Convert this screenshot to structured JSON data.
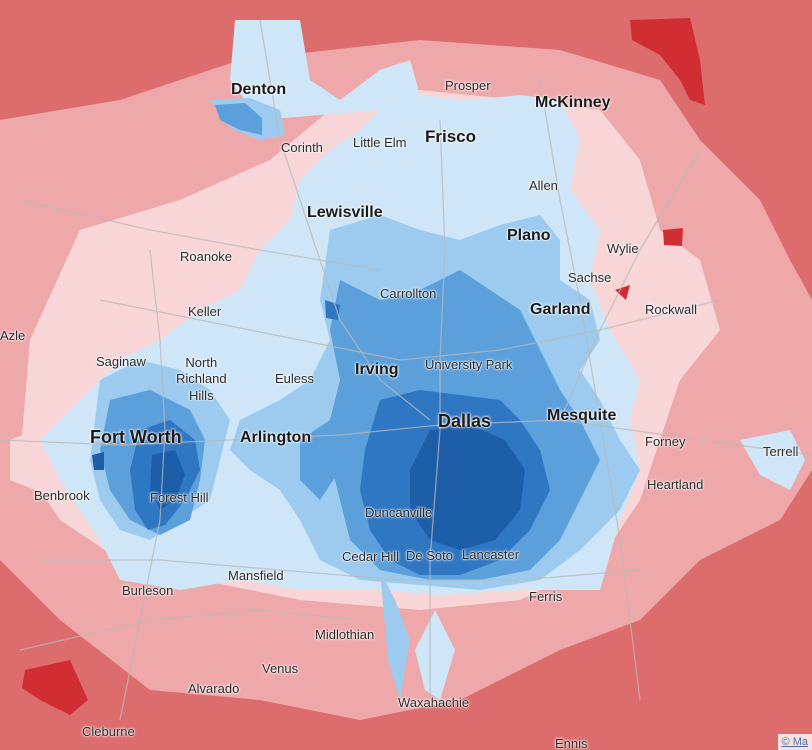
{
  "colors": {
    "deep_red": "#d12e34",
    "red": "#dd6c6c",
    "light_red": "#efa8aa",
    "pale_red": "#f8d6d7",
    "pale_blue": "#cfe6f8",
    "light_blue": "#9ccbef",
    "mid_blue": "#5b9fdb",
    "deep_blue": "#2f76c3",
    "darkest_blue": "#1d5ea8",
    "road": "#b9b9b9"
  },
  "labels": {
    "denton": "Denton",
    "prosper": "Prosper",
    "mckinney": "McKinney",
    "corinth": "Corinth",
    "little_elm": "Little Elm",
    "frisco": "Frisco",
    "allen": "Allen",
    "lewisville": "Lewisville",
    "plano": "Plano",
    "wylie": "Wylie",
    "roanoke": "Roanoke",
    "sachse": "Sachse",
    "carrollton": "Carrollton",
    "keller": "Keller",
    "garland": "Garland",
    "rockwall": "Rockwall",
    "azle": "Azle",
    "saginaw": "Saginaw",
    "north_richland_hills": "North\nRichland\nHills",
    "euless": "Euless",
    "irving": "Irving",
    "university_park": "University Park",
    "mesquite": "Mesquite",
    "fort_worth": "Fort Worth",
    "arlington": "Arlington",
    "dallas": "Dallas",
    "forney": "Forney",
    "terrell": "Terrell",
    "benbrook": "Benbrook",
    "forest_hill": "Forest Hill",
    "heartland": "Heartland",
    "duncanville": "Duncanville",
    "cedar_hill": "Cedar Hill",
    "de_soto": "De Soto",
    "lancaster": "Lancaster",
    "mansfield": "Mansfield",
    "burleson": "Burleson",
    "ferris": "Ferris",
    "midlothian": "Midlothian",
    "venus": "Venus",
    "alvarado": "Alvarado",
    "waxahachie": "Waxahachie",
    "cleburne": "Cleburne",
    "ennis": "Ennis"
  },
  "attribution": "© Ma"
}
